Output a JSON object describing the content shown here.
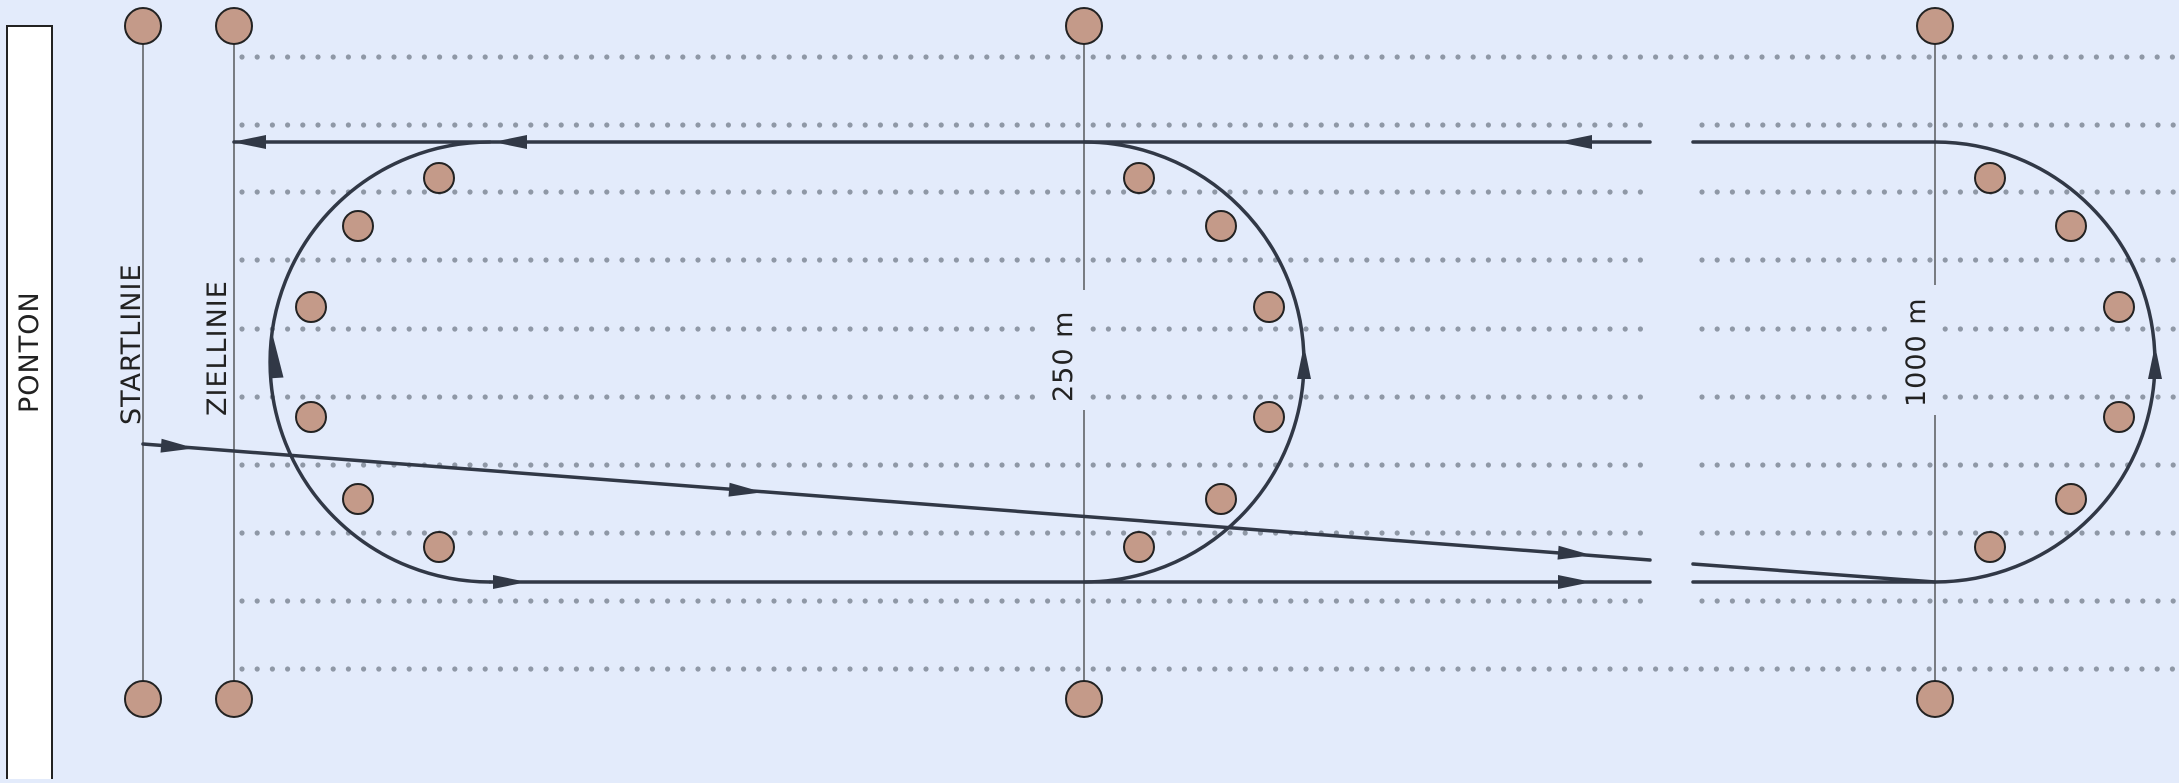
{
  "labels": {
    "ponton": "PONTON",
    "start_line": "STARTLINIE",
    "finish_line": "ZIELLINIE",
    "distance_250": "250  m",
    "distance_1000": "1000  m"
  },
  "colors": {
    "background": "#e3ebfb",
    "buoy_fill": "#c49a89",
    "course_line": "#313846",
    "lane_dots": "#8f98a6"
  }
}
